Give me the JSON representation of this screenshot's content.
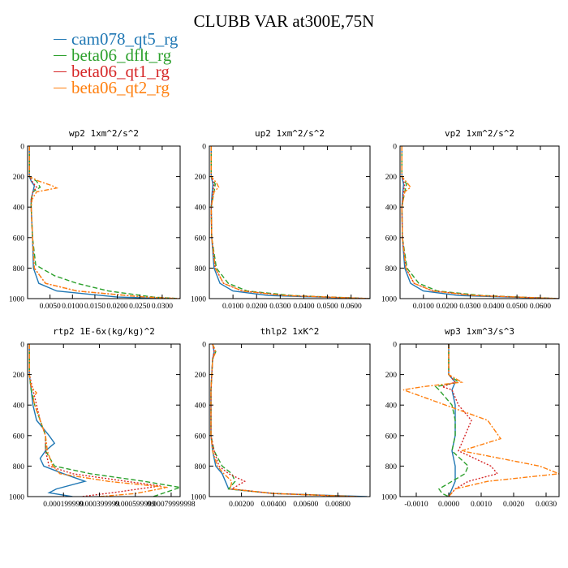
{
  "title": "CLUBB VAR at300E,75N",
  "legend": [
    {
      "name": "cam078_qt5_rg",
      "color": "#1f77b4"
    },
    {
      "name": "beta06_dflt_rg",
      "color": "#2ca02c"
    },
    {
      "name": "beta06_qt1_rg",
      "color": "#d62728"
    },
    {
      "name": "beta06_qt2_rg",
      "color": "#ff7f0e"
    }
  ],
  "chart_data": [
    {
      "type": "line",
      "title": "wp2  1xm^2/s^2",
      "ylim": [
        1000,
        0
      ],
      "xlim": [
        0,
        0.034
      ],
      "y_ticks": [
        0,
        200,
        400,
        600,
        800,
        1000
      ],
      "x_ticks": [
        {
          "v": 0.005,
          "label": "0.0050"
        },
        {
          "v": 0.01,
          "label": "0.0100"
        },
        {
          "v": 0.015,
          "label": "0.0150"
        },
        {
          "v": 0.02,
          "label": "0.0200"
        },
        {
          "v": 0.025,
          "label": "0.0250"
        },
        {
          "v": 0.03,
          "label": "0.0300"
        }
      ],
      "series": [
        {
          "name": "cam078_qt5_rg",
          "p": [
            0,
            200,
            230,
            260,
            300,
            350,
            400,
            600,
            800,
            900,
            950,
            990,
            1000
          ],
          "v": [
            0.0004,
            0.0004,
            0.0008,
            0.0015,
            0.0012,
            0.0008,
            0.0008,
            0.0011,
            0.0013,
            0.0025,
            0.0065,
            0.02,
            0.032
          ]
        },
        {
          "name": "beta06_dflt_rg",
          "p": [
            0,
            200,
            230,
            270,
            300,
            350,
            400,
            600,
            780,
            850,
            900,
            950,
            990,
            1000
          ],
          "v": [
            0.0004,
            0.0004,
            0.002,
            0.0028,
            0.0012,
            0.0008,
            0.0008,
            0.0011,
            0.0018,
            0.006,
            0.011,
            0.018,
            0.028,
            0.034
          ]
        },
        {
          "name": "beta06_qt1_rg",
          "p": [
            0,
            200,
            240,
            270,
            300,
            350,
            400,
            600,
            800,
            900,
            950,
            990,
            1000
          ],
          "v": [
            0.0004,
            0.0004,
            0.0012,
            0.002,
            0.0012,
            0.0008,
            0.0008,
            0.0011,
            0.0015,
            0.004,
            0.011,
            0.026,
            0.034
          ]
        },
        {
          "name": "beta06_qt2_rg",
          "p": [
            0,
            200,
            230,
            260,
            275,
            300,
            350,
            400,
            600,
            800,
            900,
            950,
            990,
            1000
          ],
          "v": [
            0.0004,
            0.0004,
            0.0025,
            0.0055,
            0.0065,
            0.002,
            0.001,
            0.0008,
            0.0011,
            0.0015,
            0.004,
            0.011,
            0.026,
            0.034
          ]
        }
      ]
    },
    {
      "type": "line",
      "title": "up2  1xm^2/s^2",
      "ylim": [
        1000,
        0
      ],
      "xlim": [
        0,
        0.068
      ],
      "y_ticks": [
        0,
        200,
        400,
        600,
        800,
        1000
      ],
      "x_ticks": [
        {
          "v": 0.01,
          "label": "0.0100"
        },
        {
          "v": 0.02,
          "label": "0.0200"
        },
        {
          "v": 0.03,
          "label": "0.0300"
        },
        {
          "v": 0.04,
          "label": "0.0400"
        },
        {
          "v": 0.05,
          "label": "0.0500"
        },
        {
          "v": 0.06,
          "label": "0.0600"
        }
      ],
      "series": [
        {
          "name": "cam078_qt5_rg",
          "p": [
            0,
            200,
            250,
            300,
            400,
            600,
            800,
            900,
            950,
            980,
            1000
          ],
          "v": [
            0.0008,
            0.0008,
            0.0015,
            0.0012,
            0.0008,
            0.001,
            0.002,
            0.0045,
            0.01,
            0.025,
            0.068
          ]
        },
        {
          "name": "beta06_dflt_rg",
          "p": [
            0,
            200,
            250,
            300,
            400,
            600,
            800,
            900,
            950,
            980,
            1000
          ],
          "v": [
            0.0008,
            0.0008,
            0.0025,
            0.002,
            0.0008,
            0.001,
            0.003,
            0.008,
            0.016,
            0.035,
            0.068
          ]
        },
        {
          "name": "beta06_qt1_rg",
          "p": [
            0,
            200,
            250,
            300,
            400,
            600,
            800,
            900,
            950,
            980,
            1000
          ],
          "v": [
            0.0008,
            0.0008,
            0.002,
            0.0015,
            0.0008,
            0.001,
            0.0025,
            0.006,
            0.014,
            0.032,
            0.068
          ]
        },
        {
          "name": "beta06_qt2_rg",
          "p": [
            0,
            200,
            240,
            270,
            300,
            400,
            600,
            800,
            900,
            950,
            980,
            1000
          ],
          "v": [
            0.0008,
            0.0008,
            0.003,
            0.004,
            0.002,
            0.0008,
            0.001,
            0.0025,
            0.006,
            0.014,
            0.032,
            0.068
          ]
        }
      ]
    },
    {
      "type": "line",
      "title": "vp2  1xm^2/s^2",
      "ylim": [
        1000,
        0
      ],
      "xlim": [
        0,
        0.068
      ],
      "y_ticks": [
        0,
        200,
        400,
        600,
        800,
        1000
      ],
      "x_ticks": [
        {
          "v": 0.01,
          "label": "0.0100"
        },
        {
          "v": 0.02,
          "label": "0.0200"
        },
        {
          "v": 0.03,
          "label": "0.0300"
        },
        {
          "v": 0.04,
          "label": "0.0400"
        },
        {
          "v": 0.05,
          "label": "0.0500"
        },
        {
          "v": 0.06,
          "label": "0.0600"
        }
      ],
      "series": [
        {
          "name": "cam078_qt5_rg",
          "p": [
            0,
            200,
            250,
            300,
            400,
            600,
            800,
            900,
            950,
            980,
            1000
          ],
          "v": [
            0.0008,
            0.0008,
            0.0015,
            0.0012,
            0.0008,
            0.001,
            0.002,
            0.0045,
            0.01,
            0.025,
            0.068
          ]
        },
        {
          "name": "beta06_dflt_rg",
          "p": [
            0,
            200,
            250,
            300,
            400,
            600,
            800,
            900,
            950,
            980,
            1000
          ],
          "v": [
            0.0008,
            0.0008,
            0.0028,
            0.002,
            0.0008,
            0.001,
            0.003,
            0.008,
            0.016,
            0.035,
            0.068
          ]
        },
        {
          "name": "beta06_qt1_rg",
          "p": [
            0,
            200,
            250,
            300,
            400,
            600,
            800,
            900,
            950,
            980,
            1000
          ],
          "v": [
            0.0008,
            0.0008,
            0.002,
            0.0015,
            0.0008,
            0.001,
            0.0025,
            0.006,
            0.014,
            0.032,
            0.068
          ]
        },
        {
          "name": "beta06_qt2_rg",
          "p": [
            0,
            200,
            240,
            270,
            300,
            400,
            600,
            800,
            900,
            950,
            980,
            1000
          ],
          "v": [
            0.0008,
            0.0008,
            0.003,
            0.0045,
            0.002,
            0.0008,
            0.001,
            0.0025,
            0.006,
            0.014,
            0.032,
            0.068
          ]
        }
      ]
    },
    {
      "type": "line",
      "title": "rtp2  1E-6x(kg/kg)^2",
      "ylim": [
        1000,
        0
      ],
      "xlim": [
        0,
        0.00085
      ],
      "y_ticks": [
        0,
        200,
        400,
        600,
        800,
        1000
      ],
      "x_ticks": [
        {
          "v": 0.0002,
          "label": "0.000199999"
        },
        {
          "v": 0.0004,
          "label": "0.000399999"
        },
        {
          "v": 0.0006,
          "label": "0.000599999"
        },
        {
          "v": 0.0008,
          "label": "0.00079999998"
        }
      ],
      "series": [
        {
          "name": "cam078_qt5_rg",
          "p": [
            0,
            200,
            300,
            400,
            500,
            600,
            650,
            700,
            750,
            800,
            850,
            900,
            950,
            975,
            1000
          ],
          "v": [
            1e-05,
            1e-05,
            2e-05,
            3e-05,
            5e-05,
            0.00012,
            0.00015,
            0.0001,
            7e-05,
            9e-05,
            0.0002,
            0.00032,
            0.00016,
            0.00012,
            0.00025
          ]
        },
        {
          "name": "beta06_dflt_rg",
          "p": [
            0,
            200,
            300,
            400,
            500,
            600,
            700,
            800,
            850,
            900,
            940,
            1000
          ],
          "v": [
            1e-05,
            1e-05,
            2e-05,
            4e-05,
            7e-05,
            0.0001,
            0.0001,
            0.00015,
            0.00035,
            0.00065,
            0.00085,
            0.0007
          ]
        },
        {
          "name": "beta06_qt1_rg",
          "p": [
            0,
            200,
            300,
            400,
            500,
            600,
            700,
            800,
            850,
            900,
            930,
            970,
            1000
          ],
          "v": [
            1e-05,
            1e-05,
            3e-05,
            5e-05,
            7e-05,
            0.0001,
            0.0001,
            0.00012,
            0.00025,
            0.00055,
            0.00074,
            0.0005,
            0.0003
          ]
        },
        {
          "name": "beta06_qt2_rg",
          "p": [
            0,
            200,
            280,
            320,
            350,
            400,
            500,
            600,
            700,
            800,
            850,
            900,
            940,
            980,
            1000
          ],
          "v": [
            1e-05,
            1e-05,
            2e-05,
            5e-05,
            3e-05,
            4e-05,
            7e-05,
            0.0001,
            0.00011,
            0.00014,
            0.00018,
            0.00045,
            0.00078,
            0.0006,
            0.0004
          ]
        }
      ]
    },
    {
      "type": "line",
      "title": "thlp2  1xK^2",
      "ylim": [
        1000,
        0
      ],
      "xlim": [
        0,
        0.01
      ],
      "y_ticks": [
        0,
        200,
        400,
        600,
        800,
        1000
      ],
      "x_ticks": [
        {
          "v": 0.002,
          "label": "0.00200"
        },
        {
          "v": 0.004,
          "label": "0.00400"
        },
        {
          "v": 0.006,
          "label": "0.00600"
        },
        {
          "v": 0.008,
          "label": "0.00800"
        }
      ],
      "series": [
        {
          "name": "cam078_qt5_rg",
          "p": [
            0,
            50,
            100,
            200,
            300,
            400,
            500,
            600,
            700,
            800,
            850,
            900,
            950,
            980,
            1000
          ],
          "v": [
            0.0002,
            0.0003,
            0.0002,
            0.00015,
            0.0001,
            0.0001,
            0.0001,
            0.0001,
            0.0002,
            0.0004,
            0.0008,
            0.001,
            0.0012,
            0.004,
            0.0098
          ]
        },
        {
          "name": "beta06_dflt_rg",
          "p": [
            0,
            50,
            100,
            200,
            300,
            400,
            500,
            600,
            700,
            800,
            850,
            900,
            950,
            980,
            1000
          ],
          "v": [
            0.0002,
            0.0004,
            0.0002,
            0.00015,
            0.0001,
            0.0001,
            0.0001,
            0.0001,
            0.0003,
            0.0008,
            0.0014,
            0.0016,
            0.0012,
            0.004,
            0.0092
          ]
        },
        {
          "name": "beta06_qt1_rg",
          "p": [
            0,
            50,
            100,
            200,
            300,
            400,
            500,
            600,
            700,
            800,
            850,
            900,
            950,
            980,
            1000
          ],
          "v": [
            0.0002,
            0.0003,
            0.0002,
            0.00015,
            0.0001,
            0.0001,
            0.0001,
            0.0001,
            0.0003,
            0.0006,
            0.0012,
            0.0022,
            0.0014,
            0.004,
            0.0092
          ]
        },
        {
          "name": "beta06_qt2_rg",
          "p": [
            0,
            50,
            100,
            200,
            300,
            400,
            500,
            600,
            700,
            800,
            850,
            900,
            950,
            980,
            1000
          ],
          "v": [
            0.0002,
            0.0004,
            0.0002,
            0.00015,
            0.0001,
            0.0001,
            0.0001,
            0.0001,
            0.0002,
            0.0005,
            0.0009,
            0.0014,
            0.0013,
            0.004,
            0.0092
          ]
        }
      ]
    },
    {
      "type": "line",
      "title": "wp3  1xm^3/s^3",
      "ylim": [
        1000,
        0
      ],
      "xlim": [
        -0.0015,
        0.0034
      ],
      "y_ticks": [
        0,
        200,
        400,
        600,
        800,
        1000
      ],
      "x_ticks": [
        {
          "v": -0.001,
          "label": "-0.0010"
        },
        {
          "v": 0,
          "label": "0.0000"
        },
        {
          "v": 0.001,
          "label": "0.0010"
        },
        {
          "v": 0.002,
          "label": "0.0020"
        },
        {
          "v": 0.003,
          "label": "0.0030"
        }
      ],
      "series": [
        {
          "name": "cam078_qt5_rg",
          "p": [
            0,
            200,
            250,
            300,
            400,
            500,
            600,
            700,
            800,
            850,
            900,
            950,
            1000
          ],
          "v": [
            0,
            0,
            0.0002,
            0.0001,
            0.0002,
            0.0002,
            0.0002,
            0.0001,
            0.0002,
            0.0002,
            0.0002,
            0.0001,
            0
          ]
        },
        {
          "name": "beta06_dflt_rg",
          "p": [
            0,
            200,
            250,
            280,
            300,
            400,
            500,
            600,
            700,
            800,
            850,
            900,
            950,
            980,
            1000
          ],
          "v": [
            0,
            0,
            0.0003,
            -0.0004,
            -0.0003,
            0.0001,
            0.0002,
            0.0002,
            0.0001,
            0.0006,
            0.0005,
            0.0001,
            -0.0003,
            -0.0002,
            0
          ]
        },
        {
          "name": "beta06_qt1_rg",
          "p": [
            0,
            200,
            250,
            280,
            300,
            400,
            500,
            600,
            700,
            800,
            850,
            900,
            950,
            1000
          ],
          "v": [
            0,
            0,
            0.0002,
            -0.0002,
            0.0001,
            0.0003,
            0.0007,
            0.0005,
            0.0003,
            0.0013,
            0.0015,
            0.0006,
            0.0002,
            0
          ]
        },
        {
          "name": "beta06_qt2_rg",
          "p": [
            0,
            200,
            250,
            280,
            300,
            400,
            500,
            620,
            700,
            800,
            850,
            900,
            950,
            1000
          ],
          "v": [
            0,
            0,
            0.0004,
            -0.0008,
            -0.0014,
            -0.0001,
            0.0012,
            0.0016,
            0.0004,
            0.0028,
            0.0034,
            0.0012,
            0.0002,
            0
          ]
        }
      ]
    }
  ]
}
